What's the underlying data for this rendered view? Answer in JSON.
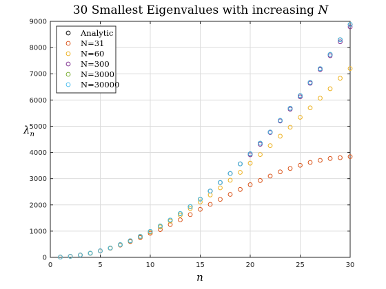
{
  "chart_data": {
    "type": "scatter",
    "title_text": "30 Smallest Eigenvalues with increasing ",
    "title_var": "N",
    "xlabel": "n",
    "ylabel_sym": "λ",
    "ylabel_sub": "n",
    "xlim": [
      0,
      30
    ],
    "ylim": [
      0,
      9000
    ],
    "xticks": [
      0,
      5,
      10,
      15,
      20,
      25,
      30
    ],
    "yticks": [
      0,
      1000,
      2000,
      3000,
      4000,
      5000,
      6000,
      7000,
      8000,
      9000
    ],
    "grid": true,
    "legend_position": "top-left",
    "marker": "open-circle",
    "series": [
      {
        "name": "Analytic",
        "color": "#000000",
        "x": [
          1,
          2,
          3,
          4,
          5,
          6,
          7,
          8,
          9,
          10,
          11,
          12,
          13,
          14,
          15,
          16,
          17,
          18,
          19,
          20,
          21,
          22,
          23,
          24,
          25,
          26,
          27,
          28,
          29,
          30
        ],
        "values": [
          10,
          39,
          89,
          158,
          247,
          355,
          484,
          632,
          799,
          987,
          1194,
          1421,
          1668,
          1934,
          2221,
          2527,
          2852,
          3198,
          3563,
          3948,
          4352,
          4777,
          5221,
          5684,
          6168,
          6671,
          7194,
          7737,
          8299,
          8882
        ]
      },
      {
        "name": "N=31",
        "color": "#d95319",
        "x": [
          1,
          2,
          3,
          4,
          5,
          6,
          7,
          8,
          9,
          10,
          11,
          12,
          13,
          14,
          15,
          16,
          17,
          18,
          19,
          20,
          21,
          22,
          23,
          24,
          25,
          26,
          27,
          28,
          29,
          30
        ],
        "values": [
          10,
          39,
          88,
          156,
          241,
          345,
          465,
          601,
          753,
          919,
          1060,
          1250,
          1430,
          1630,
          1830,
          2020,
          2210,
          2400,
          2590,
          2770,
          2930,
          3100,
          3260,
          3390,
          3510,
          3620,
          3700,
          3770,
          3800,
          3840
        ]
      },
      {
        "name": "N=60",
        "color": "#edb120",
        "x": [
          1,
          2,
          3,
          4,
          5,
          6,
          7,
          8,
          9,
          10,
          11,
          12,
          13,
          14,
          15,
          16,
          17,
          18,
          19,
          20,
          21,
          22,
          23,
          24,
          25,
          26,
          27,
          28,
          29,
          30
        ],
        "values": [
          10,
          39,
          89,
          158,
          246,
          353,
          480,
          624,
          786,
          966,
          1160,
          1380,
          1610,
          1860,
          2110,
          2380,
          2650,
          2940,
          3240,
          3590,
          3920,
          4260,
          4620,
          4960,
          5340,
          5700,
          6070,
          6430,
          6830,
          7200
        ]
      },
      {
        "name": "N=300",
        "color": "#7e2f8e",
        "x": [
          20,
          21,
          22,
          23,
          24,
          25,
          26,
          27,
          28,
          29,
          30
        ],
        "values": [
          3910,
          4310,
          4760,
          5200,
          5650,
          6120,
          6640,
          7160,
          7690,
          8220,
          8790
        ]
      },
      {
        "name": "N=3000",
        "color": "#77ac30",
        "x": [
          4,
          6,
          7,
          8,
          9,
          10,
          11,
          12,
          13,
          14,
          15
        ],
        "values": [
          158,
          355,
          484,
          632,
          799,
          987,
          1194,
          1421,
          1668,
          1934,
          2221
        ]
      },
      {
        "name": "N=30000",
        "color": "#4dbeee",
        "x": [
          1,
          2,
          3,
          4,
          5,
          6,
          7,
          8,
          9,
          10,
          11,
          12,
          13,
          14,
          15,
          16,
          17,
          18,
          19,
          20,
          21,
          22,
          23,
          24,
          25,
          26,
          27,
          28,
          29,
          30
        ],
        "values": [
          10,
          39,
          89,
          158,
          247,
          355,
          484,
          632,
          799,
          987,
          1194,
          1421,
          1668,
          1934,
          2221,
          2527,
          2852,
          3198,
          3563,
          3948,
          4352,
          4777,
          5221,
          5684,
          6168,
          6671,
          7194,
          7737,
          8299,
          8882
        ]
      }
    ]
  }
}
